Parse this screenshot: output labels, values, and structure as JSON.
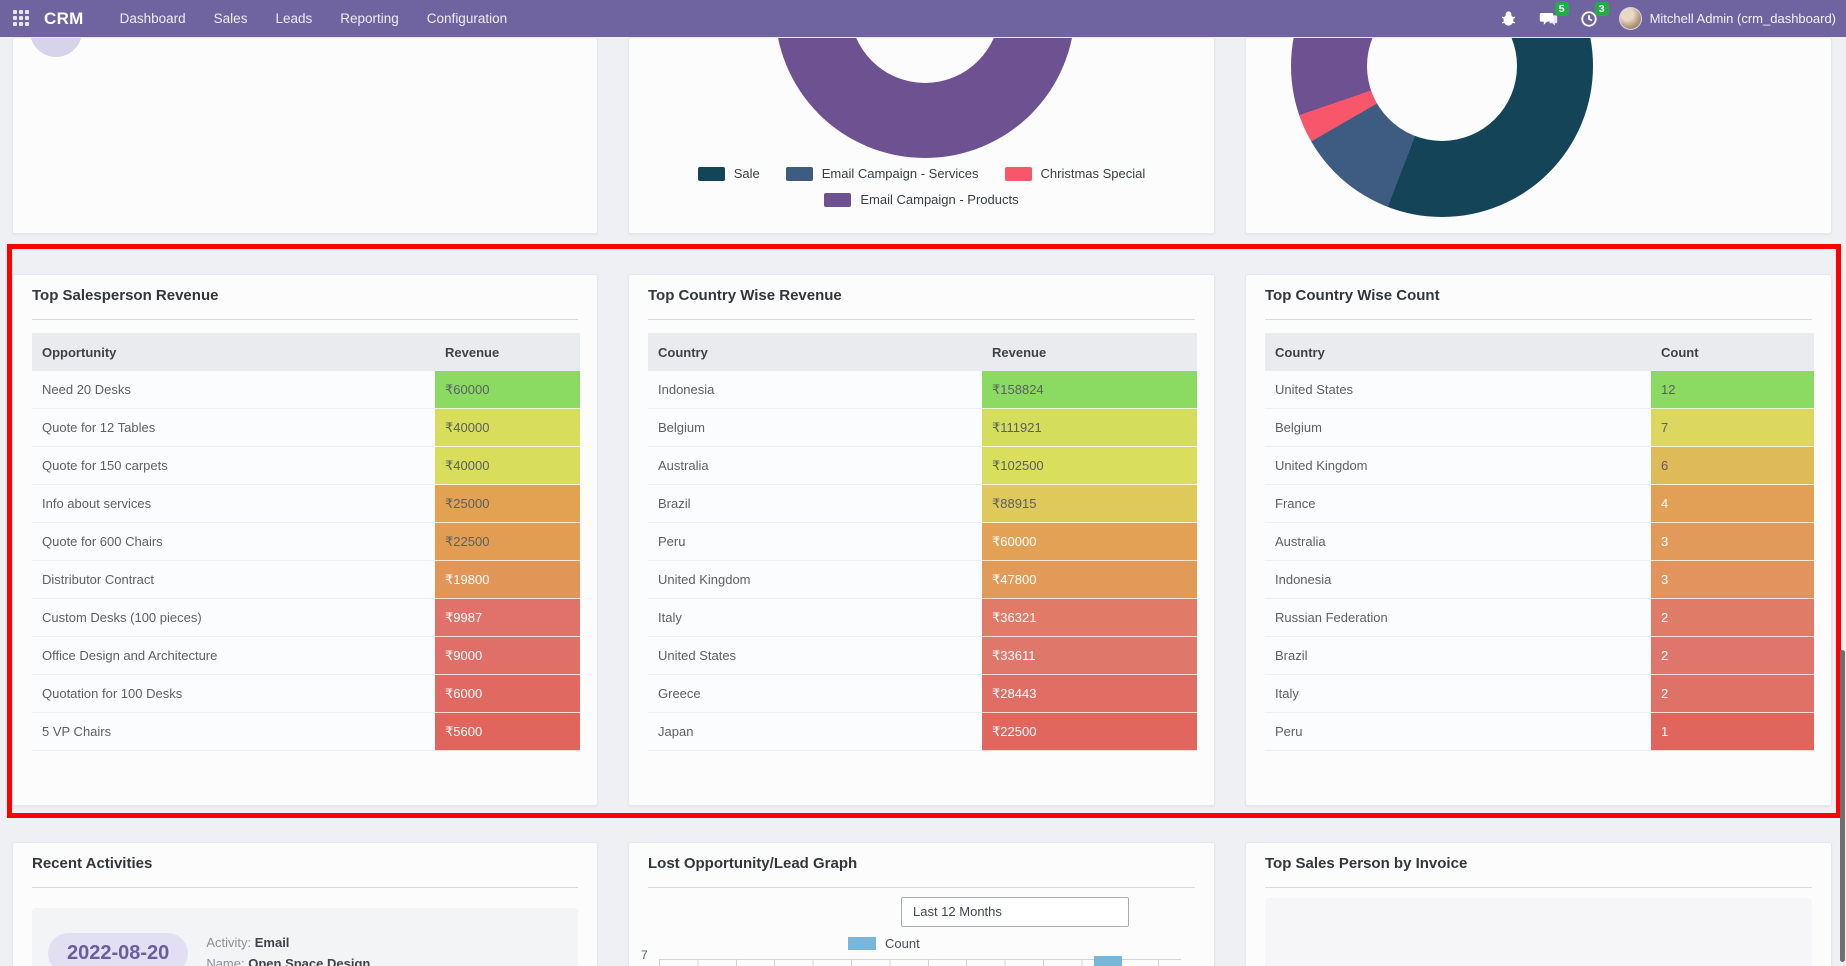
{
  "nav": {
    "brand": "CRM",
    "items": [
      "Dashboard",
      "Sales",
      "Leads",
      "Reporting",
      "Configuration"
    ],
    "message_badge": "5",
    "activity_badge": "3",
    "user": "Mitchell Admin (crm_dashboard)"
  },
  "top_charts": {
    "legend": [
      {
        "label": "Sale",
        "color": "#134457"
      },
      {
        "label": "Email Campaign - Services",
        "color": "#3e5b81"
      },
      {
        "label": "Christmas Special",
        "color": "#f8566b"
      },
      {
        "label": "Email Campaign - Products",
        "color": "#6d5191"
      }
    ],
    "donut_segments_right": [
      {
        "label": "Sale",
        "color": "#134457",
        "deg": 201
      },
      {
        "label": "Email Campaign - Services",
        "color": "#3e5b81",
        "deg": 39
      },
      {
        "label": "Christmas Special",
        "color": "#f8566b",
        "deg": 11
      },
      {
        "label": "Email Campaign - Products",
        "color": "#6d5191",
        "deg": 109
      }
    ]
  },
  "tables": [
    {
      "title": "Top Salesperson Revenue",
      "col_label": "Opportunity",
      "col_value": "Revenue",
      "rows": [
        {
          "label": "Need 20 Desks",
          "value": "₹60000",
          "bg": "#8bdb63",
          "fg": "#5a6065"
        },
        {
          "label": "Quote for 12 Tables",
          "value": "₹40000",
          "bg": "#d8de5b",
          "fg": "#5a6065"
        },
        {
          "label": "Quote for 150 carpets",
          "value": "₹40000",
          "bg": "#d8de5b",
          "fg": "#5a6065"
        },
        {
          "label": "Info about services",
          "value": "₹25000",
          "bg": "#e2a251",
          "fg": "#5a6065"
        },
        {
          "label": "Quote for 600 Chairs",
          "value": "₹22500",
          "bg": "#e29d53",
          "fg": "#5a6065"
        },
        {
          "label": "Distributor Contract",
          "value": "₹19800",
          "bg": "#e19556",
          "fg": "#ffffff"
        },
        {
          "label": "Custom Desks (100 pieces)",
          "value": "₹9987",
          "bg": "#e0726a",
          "fg": "#ffffff"
        },
        {
          "label": "Office Design and Architecture",
          "value": "₹9000",
          "bg": "#e06f67",
          "fg": "#ffffff"
        },
        {
          "label": "Quotation for 100 Desks",
          "value": "₹6000",
          "bg": "#e06961",
          "fg": "#ffffff"
        },
        {
          "label": "5 VP Chairs",
          "value": "₹5600",
          "bg": "#e0655d",
          "fg": "#ffffff"
        }
      ]
    },
    {
      "title": "Top Country Wise Revenue",
      "col_label": "Country",
      "col_value": "Revenue",
      "rows": [
        {
          "label": "Indonesia",
          "value": "₹158824",
          "bg": "#8bdb63",
          "fg": "#5a6065"
        },
        {
          "label": "Belgium",
          "value": "₹111921",
          "bg": "#d5dd5c",
          "fg": "#5a6065"
        },
        {
          "label": "Australia",
          "value": "₹102500",
          "bg": "#dade5d",
          "fg": "#5a6065"
        },
        {
          "label": "Brazil",
          "value": "₹88915",
          "bg": "#dec95a",
          "fg": "#5a6065"
        },
        {
          "label": "Peru",
          "value": "₹60000",
          "bg": "#e2a155",
          "fg": "#ffffff"
        },
        {
          "label": "United Kingdom",
          "value": "₹47800",
          "bg": "#e29a58",
          "fg": "#ffffff"
        },
        {
          "label": "Italy",
          "value": "₹36321",
          "bg": "#e17b67",
          "fg": "#ffffff"
        },
        {
          "label": "United States",
          "value": "₹33611",
          "bg": "#e0776b",
          "fg": "#ffffff"
        },
        {
          "label": "Greece",
          "value": "₹28443",
          "bg": "#e06e64",
          "fg": "#ffffff"
        },
        {
          "label": "Japan",
          "value": "₹22500",
          "bg": "#e0665e",
          "fg": "#ffffff"
        }
      ]
    },
    {
      "title": "Top Country Wise Count",
      "col_label": "Country",
      "col_value": "Count",
      "rows": [
        {
          "label": "United States",
          "value": "12",
          "bg": "#8bdb63",
          "fg": "#5a6065"
        },
        {
          "label": "Belgium",
          "value": "7",
          "bg": "#dcd75e",
          "fg": "#5a6065"
        },
        {
          "label": "United Kingdom",
          "value": "6",
          "bg": "#dfba58",
          "fg": "#5a6065"
        },
        {
          "label": "France",
          "value": "4",
          "bg": "#e29f56",
          "fg": "#ffffff"
        },
        {
          "label": "Australia",
          "value": "3",
          "bg": "#e29a5a",
          "fg": "#ffffff"
        },
        {
          "label": "Indonesia",
          "value": "3",
          "bg": "#e2945c",
          "fg": "#ffffff"
        },
        {
          "label": "Russian Federation",
          "value": "2",
          "bg": "#e07b68",
          "fg": "#ffffff"
        },
        {
          "label": "Brazil",
          "value": "2",
          "bg": "#e0766b",
          "fg": "#ffffff"
        },
        {
          "label": "Italy",
          "value": "2",
          "bg": "#e07166",
          "fg": "#ffffff"
        },
        {
          "label": "Peru",
          "value": "1",
          "bg": "#e0655d",
          "fg": "#ffffff"
        }
      ]
    }
  ],
  "recent_activities": {
    "title": "Recent Activities",
    "date": "2022-08-20",
    "activity_label": "Activity:",
    "activity_value": "Email",
    "name_label": "Name:",
    "name_value": "Open Space Design"
  },
  "lost_graph": {
    "title": "Lost Opportunity/Lead Graph",
    "filter_value": "Last 12 Months",
    "legend_label": "Count",
    "legend_color": "#79b7d9",
    "y_tick": "7",
    "visible_bar": {
      "slot": 12,
      "approx_value": 7
    }
  },
  "top_invoice": {
    "title": "Top Sales Person by Invoice"
  }
}
